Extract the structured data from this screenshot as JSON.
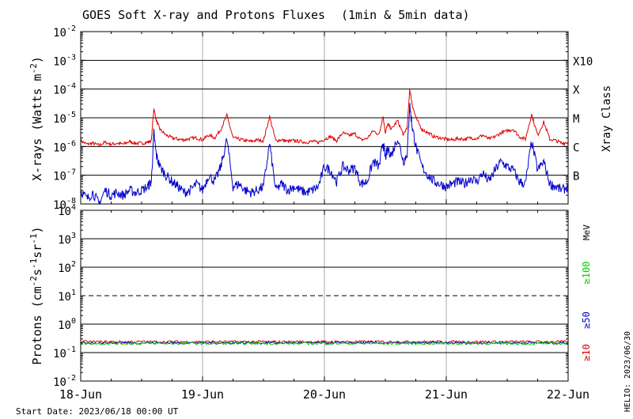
{
  "chart_data": {
    "type": "line",
    "title": "GOES Soft X-ray and Protons Fluxes",
    "subtitle": "(1min & 5min data)",
    "start_date_label": "Start Date: 2023/06/18 00:00 UT",
    "side_stamp": "HELIO: 2023/06/30",
    "x_axis": {
      "range": [
        0,
        4
      ],
      "ticks": [
        0,
        1,
        2,
        3,
        4
      ],
      "tick_labels": [
        "18-Jun",
        "19-Jun",
        "20-Jun",
        "21-Jun",
        "22-Jun"
      ]
    },
    "xray_panel": {
      "ylabel": "X-rays (Watts m",
      "ylabel_sup": "-2",
      "ylabel_close": ")",
      "yscale": "log",
      "ylim": [
        1e-08,
        0.01
      ],
      "tick_exponents": [
        -8,
        -7,
        -6,
        -5,
        -4,
        -3,
        -2
      ],
      "class_label_title": "Xray Class",
      "class_labels": [
        {
          "label": "B",
          "at": 1e-07
        },
        {
          "label": "C",
          "at": 1e-06
        },
        {
          "label": "M",
          "at": 1e-05
        },
        {
          "label": "X",
          "at": 0.0001
        },
        {
          "label": "X10",
          "at": 0.001
        }
      ],
      "series": [
        {
          "color": "#e00000",
          "x": [
            0,
            0.05,
            0.1,
            0.15,
            0.2,
            0.25,
            0.3,
            0.35,
            0.4,
            0.45,
            0.5,
            0.55,
            0.58,
            0.6,
            0.62,
            0.65,
            0.7,
            0.75,
            0.8,
            0.85,
            0.9,
            0.95,
            1.0,
            1.05,
            1.1,
            1.15,
            1.2,
            1.25,
            1.3,
            1.35,
            1.4,
            1.45,
            1.5,
            1.55,
            1.6,
            1.65,
            1.7,
            1.75,
            1.8,
            1.85,
            1.9,
            1.95,
            2.0,
            2.05,
            2.1,
            2.15,
            2.2,
            2.25,
            2.3,
            2.35,
            2.4,
            2.45,
            2.48,
            2.5,
            2.52,
            2.55,
            2.6,
            2.65,
            2.68,
            2.7,
            2.72,
            2.75,
            2.8,
            2.85,
            2.9,
            2.95,
            3.0,
            3.05,
            3.1,
            3.15,
            3.2,
            3.25,
            3.3,
            3.35,
            3.4,
            3.45,
            3.5,
            3.55,
            3.6,
            3.65,
            3.7,
            3.75,
            3.8,
            3.85,
            3.9,
            3.95,
            4.0
          ],
          "y": [
            1.6e-06,
            1.2e-06,
            1.3e-06,
            1.1e-06,
            1.4e-06,
            1.2e-06,
            1.3e-06,
            1.2e-06,
            1.5e-06,
            1.3e-06,
            1.3e-06,
            1.4e-06,
            1.6e-06,
            2.2e-05,
            8e-06,
            4e-06,
            2.5e-06,
            2e-06,
            1.8e-06,
            1.7e-06,
            1.9e-06,
            2e-06,
            1.7e-06,
            2.5e-06,
            2e-06,
            4e-06,
            1.2e-05,
            2e-06,
            1.8e-06,
            1.6e-06,
            1.5e-06,
            1.7e-06,
            1.6e-06,
            1.1e-05,
            1.6e-06,
            1.7e-06,
            1.5e-06,
            1.6e-06,
            1.5e-06,
            1.4e-06,
            1.5e-06,
            1.4e-06,
            1.8e-06,
            2.2e-06,
            1.6e-06,
            3e-06,
            2.4e-06,
            2.8e-06,
            1.7e-06,
            1.9e-06,
            3.5e-06,
            2.6e-06,
            1.2e-05,
            3e-06,
            6e-06,
            4e-06,
            8e-06,
            2.5e-06,
            5e-06,
            0.0001,
            3e-05,
            1e-05,
            4e-06,
            3e-06,
            2.2e-06,
            2e-06,
            1.8e-06,
            1.7e-06,
            1.9e-06,
            1.8e-06,
            2e-06,
            1.9e-06,
            2.5e-06,
            1.8e-06,
            2.2e-06,
            3e-06,
            3.5e-06,
            4e-06,
            2.2e-06,
            1.8e-06,
            1.3e-05,
            2.5e-06,
            7e-06,
            1.8e-06,
            1.6e-06,
            1.3e-06,
            1.4e-06
          ]
        },
        {
          "color": "#0000cc",
          "x": [
            0,
            0.05,
            0.1,
            0.15,
            0.2,
            0.25,
            0.3,
            0.35,
            0.4,
            0.45,
            0.5,
            0.55,
            0.58,
            0.6,
            0.62,
            0.65,
            0.7,
            0.75,
            0.8,
            0.85,
            0.9,
            0.95,
            1.0,
            1.05,
            1.1,
            1.15,
            1.2,
            1.25,
            1.3,
            1.35,
            1.4,
            1.45,
            1.5,
            1.55,
            1.6,
            1.65,
            1.7,
            1.75,
            1.8,
            1.85,
            1.9,
            1.95,
            2.0,
            2.05,
            2.1,
            2.15,
            2.2,
            2.25,
            2.3,
            2.35,
            2.4,
            2.45,
            2.48,
            2.5,
            2.52,
            2.55,
            2.6,
            2.65,
            2.68,
            2.7,
            2.72,
            2.75,
            2.8,
            2.85,
            2.9,
            2.95,
            3.0,
            3.05,
            3.1,
            3.15,
            3.2,
            3.25,
            3.3,
            3.35,
            3.4,
            3.45,
            3.5,
            3.55,
            3.6,
            3.65,
            3.7,
            3.75,
            3.8,
            3.85,
            3.9,
            3.95,
            4.0
          ],
          "y": [
            3e-08,
            1.5e-08,
            2.5e-08,
            1e-08,
            3e-08,
            2e-08,
            2.5e-08,
            2e-08,
            3e-08,
            2.5e-08,
            3e-08,
            4e-08,
            6e-08,
            3e-06,
            5e-07,
            2e-07,
            1e-07,
            6e-08,
            4e-08,
            2.5e-08,
            3e-08,
            5e-08,
            3e-08,
            1e-07,
            6e-08,
            2e-07,
            1.8e-06,
            4e-08,
            5e-08,
            3e-08,
            2.5e-08,
            3e-08,
            4e-08,
            1.3e-06,
            3e-08,
            5e-08,
            3e-08,
            4e-08,
            3e-08,
            2.5e-08,
            3e-08,
            4e-08,
            2e-07,
            1.5e-07,
            6e-08,
            2e-07,
            1.5e-07,
            1.8e-07,
            5e-08,
            6e-08,
            3e-07,
            2e-07,
            1.5e-06,
            4e-07,
            8e-07,
            5e-07,
            2e-06,
            3e-07,
            6e-07,
            3e-05,
            5e-06,
            1e-06,
            2e-07,
            1e-07,
            6e-08,
            5e-08,
            4e-08,
            5e-08,
            6e-08,
            5e-08,
            8e-08,
            6e-08,
            1.2e-07,
            6e-08,
            1.5e-07,
            3e-07,
            2e-07,
            1.5e-07,
            6e-08,
            5e-08,
            1.5e-06,
            1.5e-07,
            3e-07,
            5e-08,
            4e-08,
            3e-08,
            4e-08
          ]
        }
      ]
    },
    "proton_panel": {
      "ylabel": "Protons (cm",
      "ylabel_sup1": "-2",
      "ylabel_mid1": "s",
      "ylabel_sup2": "-1",
      "ylabel_mid2": "sr",
      "ylabel_sup3": "-1",
      "ylabel_close": ")",
      "yscale": "log",
      "ylim": [
        0.01,
        10000
      ],
      "tick_exponents": [
        -2,
        -1,
        0,
        1,
        2,
        3,
        4
      ],
      "threshold_dashed_at": 10,
      "energy_unit": "MeV",
      "energy_labels": [
        {
          "label": "≥100",
          "color": "#00cc00"
        },
        {
          "label": "≥50",
          "color": "#0000cc"
        },
        {
          "label": "≥10",
          "color": "#e00000"
        }
      ],
      "series": [
        {
          "color": "#e00000",
          "level": 0.24
        },
        {
          "color": "#0000cc",
          "level": 0.22
        },
        {
          "color": "#00cc00",
          "level": 0.21
        }
      ]
    }
  }
}
